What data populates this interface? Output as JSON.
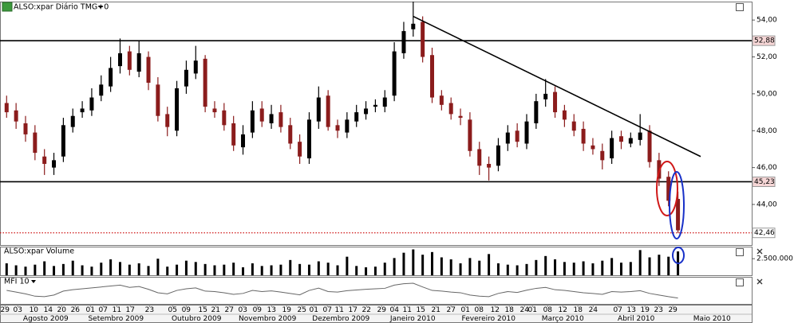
{
  "chart_data": [
    {
      "type": "candlestick",
      "title": "ALSO:xpar Diário TMG+0",
      "open": [
        49.5,
        49.1,
        48.4,
        47.9,
        46.6,
        46.0,
        46.6,
        48.2,
        49.0,
        49.1,
        49.9,
        50.4,
        51.5,
        52.3,
        51.2,
        52.0,
        50.5,
        48.9,
        48.0,
        50.4,
        51.1,
        51.9,
        49.2,
        49.1,
        48.4,
        47.1,
        47.9,
        49.2,
        48.4,
        49.0,
        48.3,
        47.4,
        46.5,
        48.5,
        49.9,
        48.3,
        47.9,
        48.5,
        48.9,
        49.3,
        49.3,
        49.9,
        52.2,
        53.5,
        53.9,
        52.1,
        49.9,
        49.5,
        48.8,
        48.6,
        47.0,
        46.2,
        46.1,
        47.3,
        48.0,
        47.3,
        48.4,
        49.7,
        50.1,
        49.1,
        48.5,
        48.1,
        47.2,
        46.9,
        46.5,
        47.7,
        47.3,
        47.5,
        48.0,
        46.4,
        45.5,
        44.3
      ],
      "high": [
        49.9,
        49.5,
        48.8,
        48.3,
        47.0,
        46.8,
        48.7,
        49.2,
        49.6,
        50.3,
        51.0,
        52.0,
        53.0,
        52.6,
        52.9,
        52.3,
        50.9,
        49.3,
        50.7,
        51.8,
        52.6,
        52.1,
        49.6,
        49.5,
        48.8,
        48.3,
        49.6,
        49.6,
        49.4,
        49.4,
        48.7,
        47.8,
        49.0,
        50.4,
        50.2,
        48.6,
        49.0,
        49.4,
        49.6,
        49.7,
        50.2,
        52.8,
        53.9,
        55.0,
        54.2,
        52.5,
        50.2,
        49.8,
        49.2,
        49.0,
        47.4,
        46.6,
        47.6,
        48.3,
        48.4,
        48.9,
        50.0,
        50.8,
        50.4,
        49.4,
        48.9,
        48.5,
        47.6,
        47.3,
        48.0,
        48.0,
        47.9,
        48.9,
        48.3,
        46.8,
        45.8,
        44.7
      ],
      "low": [
        48.7,
        48.1,
        47.4,
        46.4,
        45.6,
        45.6,
        46.3,
        47.9,
        48.7,
        48.8,
        49.6,
        50.1,
        51.1,
        51.0,
        50.9,
        50.2,
        48.5,
        47.7,
        47.7,
        50.0,
        50.8,
        49.0,
        48.7,
        48.0,
        46.9,
        46.7,
        47.6,
        48.2,
        48.1,
        47.9,
        47.0,
        46.2,
        46.2,
        48.1,
        48.0,
        47.6,
        47.6,
        48.2,
        48.6,
        49.0,
        49.0,
        49.6,
        51.9,
        53.1,
        51.7,
        49.5,
        49.1,
        48.6,
        48.3,
        46.6,
        45.6,
        45.3,
        45.8,
        46.9,
        47.1,
        47.0,
        48.1,
        49.3,
        48.7,
        48.2,
        47.7,
        46.9,
        46.7,
        45.9,
        46.2,
        47.0,
        47.1,
        47.2,
        46.0,
        45.0,
        43.9,
        42.46
      ],
      "close": [
        49.0,
        48.5,
        47.8,
        46.8,
        46.2,
        46.4,
        48.3,
        48.8,
        49.2,
        49.8,
        50.5,
        51.4,
        52.2,
        51.3,
        52.2,
        50.6,
        48.8,
        48.2,
        50.3,
        51.3,
        51.8,
        49.3,
        49.0,
        48.3,
        47.2,
        47.8,
        49.1,
        48.5,
        48.9,
        48.2,
        47.3,
        46.6,
        48.6,
        49.8,
        48.2,
        48.0,
        48.6,
        49.0,
        49.2,
        49.4,
        49.8,
        52.3,
        53.4,
        53.8,
        52.0,
        49.8,
        49.4,
        48.9,
        48.7,
        46.9,
        46.1,
        46.0,
        47.2,
        47.9,
        47.4,
        48.5,
        49.6,
        50.0,
        49.0,
        48.6,
        48.0,
        47.3,
        47.0,
        46.4,
        47.6,
        47.4,
        47.6,
        47.9,
        46.3,
        45.4,
        44.2,
        42.6
      ],
      "up_color": "#000000",
      "down_color": "#8b1c1c",
      "ylim": [
        41.8,
        55.0
      ],
      "yticks": [
        {
          "value": 44,
          "label": "44,00"
        },
        {
          "value": 46,
          "label": "46,00"
        },
        {
          "value": 48,
          "label": "48,00"
        },
        {
          "value": 50,
          "label": "50,00"
        },
        {
          "value": 52,
          "label": "52,00"
        },
        {
          "value": 54,
          "label": "54,00"
        }
      ],
      "xlim": [
        -0.7,
        78.8
      ],
      "xticks": [
        {
          "value": -0.17,
          "label": "29"
        },
        {
          "value": 1.18,
          "label": "03"
        },
        {
          "value": 2.87,
          "label": "10"
        },
        {
          "value": 4.39,
          "label": "14"
        },
        {
          "value": 5.82,
          "label": "20"
        },
        {
          "value": 7.26,
          "label": "26"
        },
        {
          "value": 8.86,
          "label": "01"
        },
        {
          "value": 10.21,
          "label": "07"
        },
        {
          "value": 11.65,
          "label": "11"
        },
        {
          "value": 13.08,
          "label": "17"
        },
        {
          "value": 15.11,
          "label": "23"
        },
        {
          "value": 17.55,
          "label": "05"
        },
        {
          "value": 18.99,
          "label": "09"
        },
        {
          "value": 20.76,
          "label": "15"
        },
        {
          "value": 22.11,
          "label": "21"
        },
        {
          "value": 23.54,
          "label": "27"
        },
        {
          "value": 24.98,
          "label": "03"
        },
        {
          "value": 26.5,
          "label": "09"
        },
        {
          "value": 28.02,
          "label": "13"
        },
        {
          "value": 29.62,
          "label": "19"
        },
        {
          "value": 31.22,
          "label": "25"
        },
        {
          "value": 32.49,
          "label": "01"
        },
        {
          "value": 33.92,
          "label": "07"
        },
        {
          "value": 35.19,
          "label": "11"
        },
        {
          "value": 36.62,
          "label": "17"
        },
        {
          "value": 38.06,
          "label": "22"
        },
        {
          "value": 39.66,
          "label": "29"
        },
        {
          "value": 41.01,
          "label": "04"
        },
        {
          "value": 42.36,
          "label": "11"
        },
        {
          "value": 43.8,
          "label": "15"
        },
        {
          "value": 45.4,
          "label": "21"
        },
        {
          "value": 47.0,
          "label": "27"
        },
        {
          "value": 48.52,
          "label": "01"
        },
        {
          "value": 49.96,
          "label": "08"
        },
        {
          "value": 51.65,
          "label": "12"
        },
        {
          "value": 53.16,
          "label": "18"
        },
        {
          "value": 54.77,
          "label": "24"
        },
        {
          "value": 55.61,
          "label": "01"
        },
        {
          "value": 57.22,
          "label": "08"
        },
        {
          "value": 58.82,
          "label": "12"
        },
        {
          "value": 60.42,
          "label": "18"
        },
        {
          "value": 62.03,
          "label": "24"
        },
        {
          "value": 64.64,
          "label": "07"
        },
        {
          "value": 66.08,
          "label": "13"
        },
        {
          "value": 67.51,
          "label": "19"
        },
        {
          "value": 68.95,
          "label": "23"
        },
        {
          "value": 70.46,
          "label": "29"
        }
      ],
      "month_labels": [
        {
          "value": 4.14,
          "label": "Agosto 2009"
        },
        {
          "value": 11.56,
          "label": "Setembro 2009"
        },
        {
          "value": 20.08,
          "label": "Outubro 2009"
        },
        {
          "value": 27.59,
          "label": "Novembro 2009"
        },
        {
          "value": 35.36,
          "label": "Dezembro 2009"
        },
        {
          "value": 42.95,
          "label": "Janeiro 2010"
        },
        {
          "value": 50.97,
          "label": "Fevereiro 2010"
        },
        {
          "value": 58.82,
          "label": "Março 2010"
        },
        {
          "value": 66.58,
          "label": "Abril 2010"
        },
        {
          "value": 74.6,
          "label": "Maio 2010"
        }
      ],
      "levels": [
        {
          "value": 52.88,
          "label": "52,88",
          "color": "#000000"
        },
        {
          "value": 45.23,
          "label": "45,23",
          "color": "#000000"
        },
        {
          "value": 42.46,
          "label": "42,46",
          "color": "#cc0000"
        }
      ],
      "trendline": {
        "x": [
          43,
          73.4
        ],
        "y": [
          54.2,
          46.6
        ],
        "color": "#000000"
      },
      "grid": false
    },
    {
      "type": "bar",
      "title": "ALSO:xpar Volume",
      "color": "#000000",
      "values": [
        1800000,
        1500000,
        1300000,
        1600000,
        2100000,
        1400000,
        1700000,
        2200000,
        1500000,
        1300000,
        1900000,
        2400000,
        2000000,
        1600000,
        1800000,
        1400000,
        2500000,
        1300000,
        1600000,
        2200000,
        2000000,
        1700000,
        1500000,
        1600000,
        1900000,
        1200000,
        1800000,
        1400000,
        1500000,
        1600000,
        2300000,
        1700000,
        1600000,
        2100000,
        1900000,
        1500000,
        2800000,
        1400000,
        1200000,
        1300000,
        1900000,
        2600000,
        3400000,
        3900000,
        3100000,
        3500000,
        2700000,
        2400000,
        1800000,
        2600000,
        2200000,
        3200000,
        1800000,
        1600000,
        1500000,
        1700000,
        2300000,
        2900000,
        2400000,
        2000000,
        1900000,
        2100000,
        1800000,
        2200000,
        2600000,
        1900000,
        2000000,
        3800000,
        2700000,
        3100000,
        2800000,
        3600000
      ],
      "ylim": [
        0,
        4200000
      ],
      "yticks": [
        {
          "value": 2500000,
          "label": "2.500.000"
        }
      ]
    },
    {
      "type": "line",
      "title": "MFI 10",
      "color": "#666666",
      "values": [
        55,
        48,
        40,
        30,
        28,
        35,
        52,
        58,
        62,
        66,
        70,
        74,
        78,
        68,
        72,
        60,
        45,
        40,
        55,
        62,
        66,
        52,
        50,
        45,
        38,
        42,
        55,
        50,
        53,
        48,
        42,
        36,
        55,
        65,
        50,
        48,
        54,
        57,
        60,
        62,
        64,
        78,
        84,
        86,
        70,
        55,
        52,
        48,
        45,
        35,
        30,
        28,
        42,
        50,
        46,
        56,
        64,
        68,
        58,
        55,
        50,
        45,
        42,
        38,
        50,
        48,
        50,
        54,
        42,
        35,
        28,
        22
      ],
      "ylim": [
        0,
        100
      ]
    }
  ]
}
